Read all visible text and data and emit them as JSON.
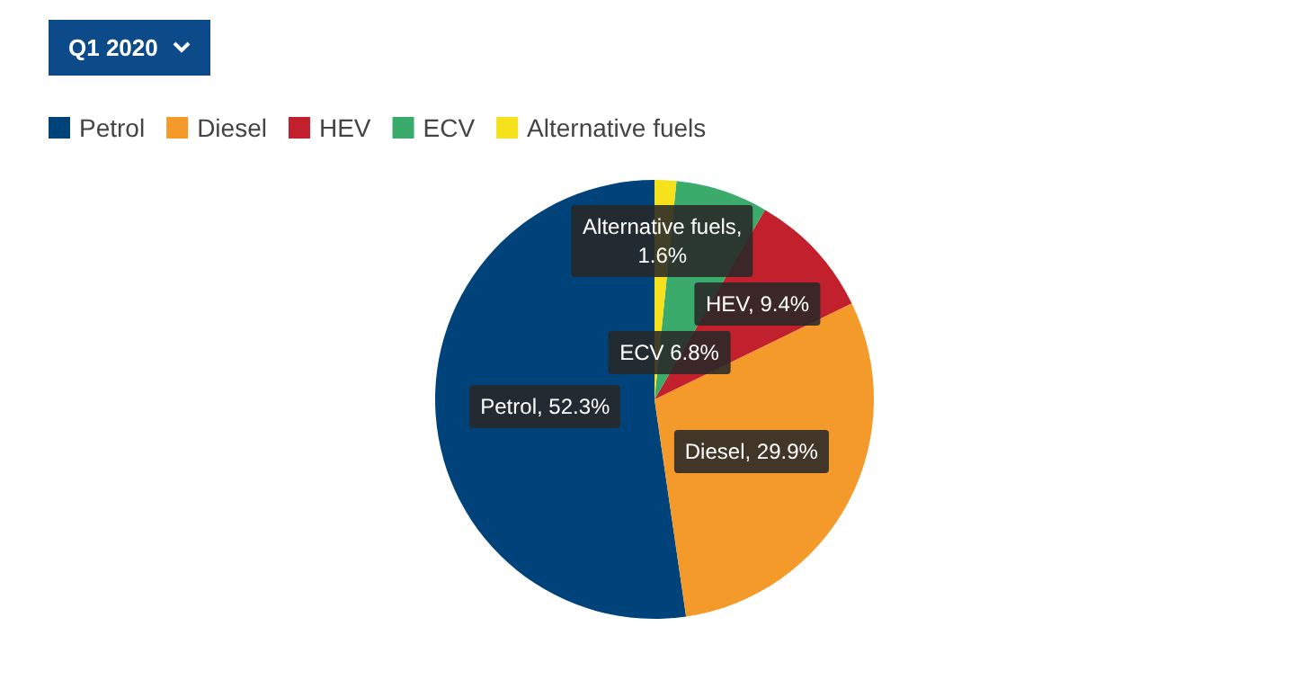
{
  "chart_data": {
    "type": "pie",
    "annotations": [
      "Q1 2020"
    ],
    "categories": [
      "Petrol",
      "Diesel",
      "HEV",
      "ECV",
      "Alternative fuels"
    ],
    "values": [
      52.3,
      29.9,
      9.4,
      6.8,
      1.6
    ],
    "colors": [
      "#00427a",
      "#f39a2b",
      "#c1202c",
      "#3bab6c",
      "#f5e21c"
    ],
    "value_labels": [
      "Petrol, 52.3%",
      "Diesel, 29.9%",
      "HEV, 9.4%",
      "ECV 6.8%",
      "Alternative fuels,\n1.6%"
    ],
    "legend": "top left"
  }
}
